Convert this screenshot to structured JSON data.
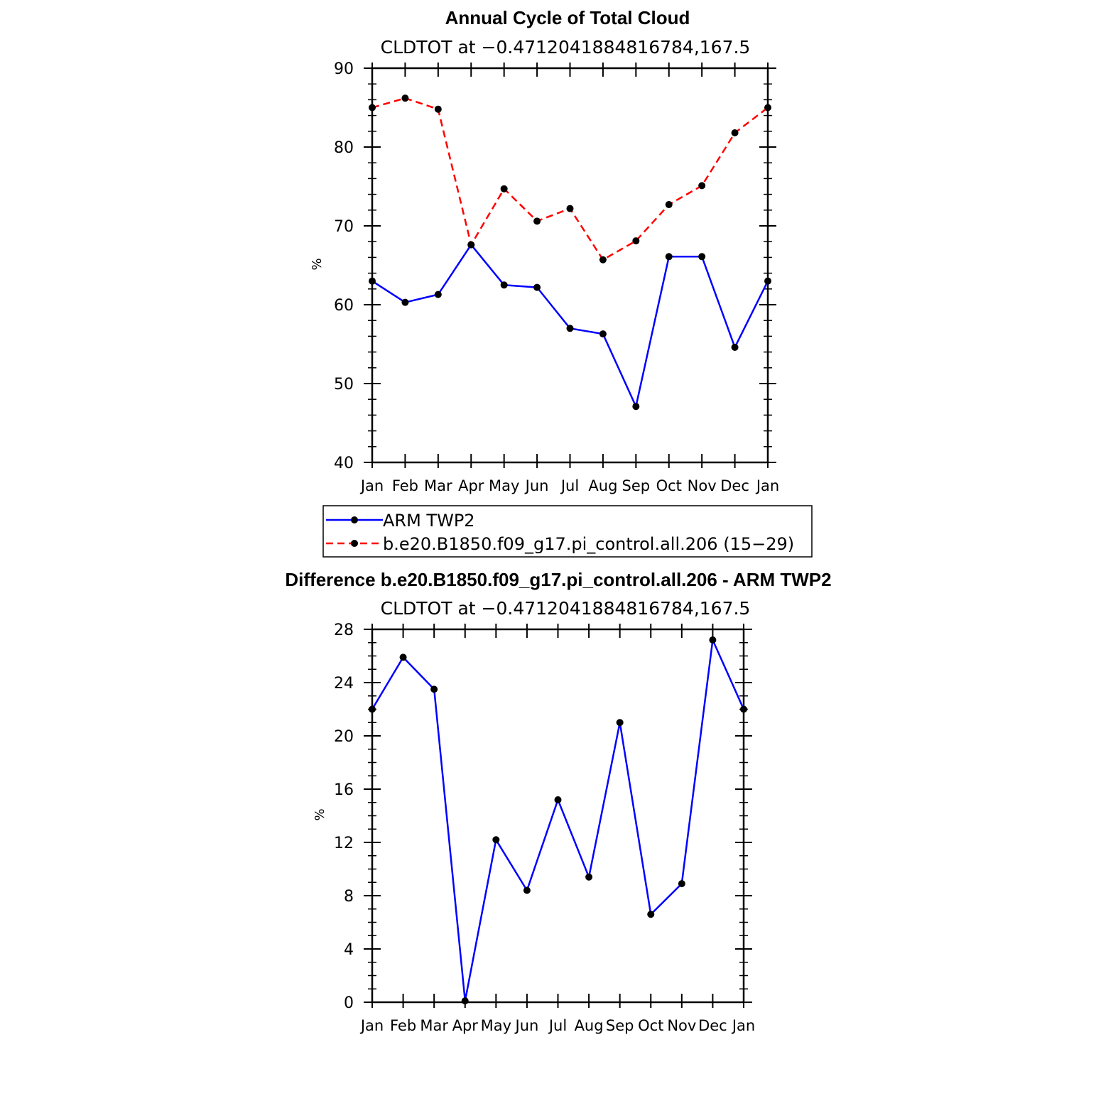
{
  "colors": {
    "obs": "#0000ff",
    "model": "#ff0000",
    "diff": "#0000ff",
    "marker": "#000000",
    "axis": "#000000"
  },
  "chart_data": [
    {
      "type": "line",
      "title": "Annual Cycle of Total Cloud",
      "subtitle": "CLDTOT at −0.4712041884816784,167.5",
      "xlabel": "",
      "ylabel": "%",
      "ylim": [
        40,
        90
      ],
      "yticks": [
        "40",
        "50",
        "60",
        "70",
        "80",
        "90"
      ],
      "categories": [
        "Jan",
        "Feb",
        "Mar",
        "Apr",
        "May",
        "Jun",
        "Jul",
        "Aug",
        "Sep",
        "Oct",
        "Nov",
        "Dec",
        "Jan"
      ],
      "series": [
        {
          "name": "ARM TWP2",
          "style": "solid",
          "color_key": "obs",
          "values": [
            63.0,
            60.3,
            61.3,
            67.6,
            62.5,
            62.2,
            57.0,
            56.3,
            47.1,
            66.1,
            66.1,
            54.6,
            63.0
          ]
        },
        {
          "name": "b.e20.B1850.f09_g17.pi_control.all.206 (15−29)",
          "style": "dashed",
          "color_key": "model",
          "values": [
            85.0,
            86.2,
            84.8,
            67.6,
            74.7,
            70.6,
            72.2,
            65.7,
            68.1,
            72.7,
            75.1,
            81.8,
            85.0
          ]
        }
      ],
      "legend": {
        "position": "below",
        "entries": [
          "ARM TWP2",
          "b.e20.B1850.f09_g17.pi_control.all.206 (15−29)"
        ]
      }
    },
    {
      "type": "line",
      "title": "Difference b.e20.B1850.f09_g17.pi_control.all.206 - ARM TWP2",
      "subtitle": "CLDTOT at −0.4712041884816784,167.5",
      "xlabel": "",
      "ylabel": "%",
      "ylim": [
        0,
        28
      ],
      "yticks": [
        "0",
        "4",
        "8",
        "12",
        "16",
        "20",
        "24",
        "28"
      ],
      "categories": [
        "Jan",
        "Feb",
        "Mar",
        "Apr",
        "May",
        "Jun",
        "Jul",
        "Aug",
        "Sep",
        "Oct",
        "Nov",
        "Dec",
        "Jan"
      ],
      "series": [
        {
          "name": "Difference",
          "style": "solid",
          "color_key": "diff",
          "values": [
            22.0,
            25.9,
            23.5,
            0.1,
            12.2,
            8.4,
            15.2,
            9.4,
            21.0,
            6.6,
            8.9,
            27.2,
            22.0
          ]
        }
      ]
    }
  ]
}
